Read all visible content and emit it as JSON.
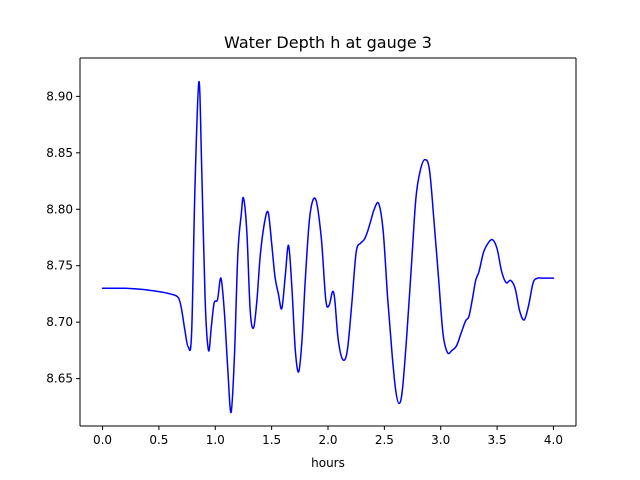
{
  "chart_data": {
    "type": "line",
    "title": "Water Depth h at gauge 3",
    "xlabel": "hours",
    "ylabel": "",
    "xlim": [
      -0.2,
      4.2
    ],
    "ylim": [
      8.608,
      8.934
    ],
    "xticks": [
      0.0,
      0.5,
      1.0,
      1.5,
      2.0,
      2.5,
      3.0,
      3.5,
      4.0
    ],
    "xtick_labels": [
      "0.0",
      "0.5",
      "1.0",
      "1.5",
      "2.0",
      "2.5",
      "3.0",
      "3.5",
      "4.0"
    ],
    "yticks": [
      8.65,
      8.7,
      8.75,
      8.8,
      8.85,
      8.9
    ],
    "ytick_labels": [
      "8.65",
      "8.70",
      "8.75",
      "8.80",
      "8.85",
      "8.90"
    ],
    "grid": false,
    "series": [
      {
        "color": "#0000ff",
        "x": [
          0.0,
          0.2,
          0.35,
          0.5,
          0.6,
          0.67,
          0.7,
          0.73,
          0.76,
          0.79,
          0.82,
          0.855,
          0.88,
          0.91,
          0.94,
          0.965,
          0.99,
          1.02,
          1.05,
          1.08,
          1.11,
          1.14,
          1.17,
          1.2,
          1.23,
          1.25,
          1.28,
          1.31,
          1.34,
          1.37,
          1.4,
          1.44,
          1.47,
          1.5,
          1.53,
          1.56,
          1.59,
          1.62,
          1.65,
          1.68,
          1.71,
          1.74,
          1.77,
          1.8,
          1.84,
          1.89,
          1.94,
          1.98,
          2.01,
          2.04,
          2.06,
          2.09,
          2.13,
          2.17,
          2.21,
          2.25,
          2.29,
          2.32,
          2.35,
          2.38,
          2.41,
          2.45,
          2.49,
          2.53,
          2.57,
          2.6,
          2.63,
          2.66,
          2.7,
          2.74,
          2.78,
          2.82,
          2.86,
          2.9,
          2.94,
          2.98,
          3.02,
          3.06,
          3.1,
          3.14,
          3.18,
          3.22,
          3.25,
          3.28,
          3.31,
          3.34,
          3.38,
          3.42,
          3.46,
          3.5,
          3.54,
          3.58,
          3.62,
          3.66,
          3.7,
          3.74,
          3.78,
          3.82,
          3.86,
          3.9,
          3.94,
          3.98,
          4.0
        ],
        "y": [
          8.73,
          8.73,
          8.729,
          8.727,
          8.725,
          8.722,
          8.712,
          8.693,
          8.678,
          8.69,
          8.82,
          8.913,
          8.835,
          8.72,
          8.675,
          8.696,
          8.717,
          8.72,
          8.739,
          8.71,
          8.66,
          8.62,
          8.67,
          8.76,
          8.795,
          8.81,
          8.78,
          8.71,
          8.695,
          8.72,
          8.76,
          8.79,
          8.797,
          8.77,
          8.74,
          8.725,
          8.712,
          8.74,
          8.768,
          8.73,
          8.675,
          8.656,
          8.685,
          8.74,
          8.795,
          8.809,
          8.775,
          8.72,
          8.715,
          8.727,
          8.72,
          8.685,
          8.667,
          8.674,
          8.715,
          8.762,
          8.77,
          8.773,
          8.78,
          8.79,
          8.8,
          8.805,
          8.78,
          8.72,
          8.67,
          8.64,
          8.628,
          8.64,
          8.69,
          8.75,
          8.81,
          8.835,
          8.844,
          8.835,
          8.79,
          8.74,
          8.69,
          8.673,
          8.675,
          8.679,
          8.69,
          8.701,
          8.705,
          8.72,
          8.737,
          8.745,
          8.762,
          8.77,
          8.773,
          8.765,
          8.745,
          8.735,
          8.737,
          8.73,
          8.71,
          8.702,
          8.715,
          8.735,
          8.739,
          8.739,
          8.739,
          8.739,
          8.739
        ]
      }
    ]
  }
}
